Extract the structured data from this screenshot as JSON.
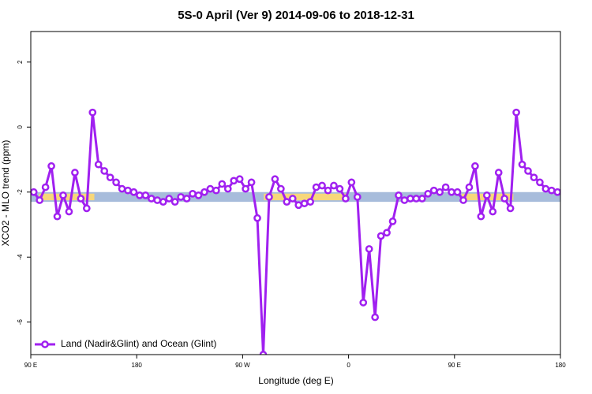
{
  "chart_data": {
    "type": "line",
    "title": "5S-0 April (Ver 9)   2014-09-06 to 2018-12-31",
    "x_label": "Longitude (deg E)",
    "y_label": "XCO2 - MLO trend (ppm)",
    "xlim": [
      90,
      540
    ],
    "ylim": [
      -7,
      2.94
    ],
    "xticks": [
      {
        "value": 90,
        "label": "90 E"
      },
      180,
      {
        "value": 270,
        "label": "90 W"
      },
      {
        "value": 360,
        "label": "0"
      },
      {
        "value": 450,
        "label": "90 E"
      },
      {
        "value": 540,
        "label": "180"
      }
    ],
    "yticks": [
      -6,
      -4,
      -2,
      0,
      2
    ],
    "band": [
      -2.3,
      -2.0
    ],
    "band_color": "#a7bcdb",
    "highlight_segments": [
      [
        97,
        144
      ],
      [
        288,
        359
      ],
      [
        456,
        500
      ]
    ],
    "highlight_color": "#f7d77a",
    "legend": "bottom left",
    "series": [
      {
        "name": "Land (Nadir&Glint) and Ocean (Glint)",
        "color": "#a020f0",
        "x": [
          92.5,
          97.5,
          102.5,
          107.5,
          112.5,
          117.5,
          122.5,
          127.5,
          132.5,
          137.5,
          142.5,
          147.5,
          152.5,
          157.5,
          162.5,
          167.5,
          172.5,
          177.5,
          182.5,
          187.5,
          192.5,
          197.5,
          202.5,
          207.5,
          212.5,
          217.5,
          222.5,
          227.5,
          232.5,
          237.5,
          242.5,
          247.5,
          252.5,
          257.5,
          262.5,
          267.5,
          272.5,
          277.5,
          282.5,
          287.5,
          292.5,
          297.5,
          302.5,
          307.5,
          312.5,
          317.5,
          322.5,
          327.5,
          332.5,
          337.5,
          342.5,
          347.5,
          352.5,
          357.5,
          362.5,
          367.5,
          372.5,
          377.5,
          382.5,
          387.5,
          392.5,
          397.5,
          402.5,
          407.5,
          412.5,
          417.5,
          422.5,
          427.5,
          432.5,
          437.5,
          442.5,
          447.5,
          452.5,
          457.5,
          462.5,
          467.5,
          472.5,
          477.5,
          482.5,
          487.5,
          492.5,
          497.5,
          502.5,
          507.5,
          512.5,
          517.5,
          522.5,
          527.5,
          532.5,
          537.5
        ],
        "values": [
          -2.0,
          -2.25,
          -1.85,
          -1.2,
          -2.75,
          -2.1,
          -2.6,
          -1.4,
          -2.2,
          -2.5,
          0.45,
          -1.15,
          -1.35,
          -1.55,
          -1.7,
          -1.9,
          -1.95,
          -2.0,
          -2.1,
          -2.1,
          -2.2,
          -2.25,
          -2.3,
          -2.2,
          -2.3,
          -2.15,
          -2.2,
          -2.05,
          -2.1,
          -2.0,
          -1.9,
          -1.95,
          -1.75,
          -1.9,
          -1.65,
          -1.6,
          -1.9,
          -1.7,
          -2.8,
          -7.0,
          -2.15,
          -1.6,
          -1.9,
          -2.3,
          -2.2,
          -2.4,
          -2.35,
          -2.3,
          -1.85,
          -1.8,
          -1.95,
          -1.8,
          -1.9,
          -2.2,
          -1.7,
          -2.15,
          -5.4,
          -3.75,
          -5.85,
          -3.35,
          -3.25,
          -2.9,
          -2.1,
          -2.25,
          -2.2,
          -2.2,
          -2.2,
          -2.05,
          -1.95,
          -2.0,
          -1.85,
          -2.0,
          -2.0,
          -2.25,
          -1.85,
          -1.2,
          -2.75,
          -2.1,
          -2.6,
          -1.4,
          -2.2,
          -2.5,
          0.45,
          -1.15,
          -1.35,
          -1.55,
          -1.7,
          -1.9,
          -1.95,
          -2.0
        ]
      }
    ]
  }
}
